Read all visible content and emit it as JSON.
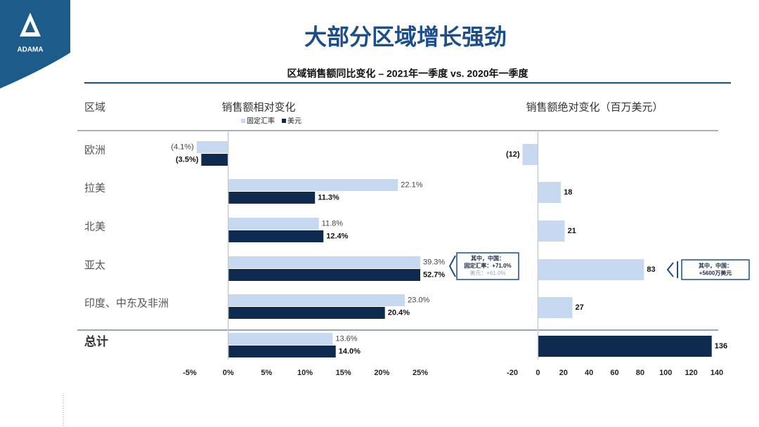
{
  "logo": "ADAMA",
  "title": "大部分区域增长强劲",
  "subtitle": "区域销售额同比变化 – 2021年一季度 vs. 2020年一季度",
  "region_header": "区域",
  "chart_data": [
    {
      "type": "hbar",
      "title": "销售额相对变化",
      "categories": [
        "欧洲",
        "拉美",
        "北美",
        "亚太",
        "印度、中东及非洲",
        "总计"
      ],
      "series": [
        {
          "name": "固定汇率",
          "color": "#c6d9f1",
          "values": [
            -4.1,
            22.1,
            11.8,
            39.3,
            23.0,
            13.6
          ],
          "value_labels": [
            "(4.1%)",
            "22.1%",
            "11.8%",
            "39.3%",
            "23.0%",
            "13.6%"
          ]
        },
        {
          "name": "美元",
          "color": "#0e2a4f",
          "values": [
            -3.5,
            11.3,
            12.4,
            52.7,
            20.4,
            14.0
          ],
          "value_labels": [
            "(3.5%)",
            "11.3%",
            "12.4%",
            "52.7%",
            "20.4%",
            "14.0%"
          ]
        }
      ],
      "xlim": [
        -5,
        25
      ],
      "xticks": [
        {
          "value": -5,
          "label": "-5%"
        },
        {
          "value": 0,
          "label": "0%"
        },
        {
          "value": 5,
          "label": "5%"
        },
        {
          "value": 10,
          "label": "10%"
        },
        {
          "value": 15,
          "label": "15%"
        },
        {
          "value": 20,
          "label": "20%"
        },
        {
          "value": 25,
          "label": "25%"
        }
      ],
      "annotation": [
        "其中，中国：",
        "固定汇率：+71.0%",
        "美元：+61.0%"
      ]
    },
    {
      "type": "hbar",
      "title": "销售额绝对变化（百万美元）",
      "colors": [
        "#c6d9f1",
        "#c6d9f1",
        "#c6d9f1",
        "#c6d9f1",
        "#c6d9f1",
        "#0e2a4f"
      ],
      "values": [
        -12,
        18,
        21,
        83,
        27,
        136
      ],
      "value_labels": [
        "(12)",
        "18",
        "21",
        "83",
        "27",
        "136"
      ],
      "xlim": [
        -20,
        140
      ],
      "xticks": [
        -20,
        0,
        20,
        40,
        60,
        80,
        100,
        120,
        140
      ],
      "annotation": [
        "其中，中国：",
        "+5600万美元"
      ]
    }
  ]
}
